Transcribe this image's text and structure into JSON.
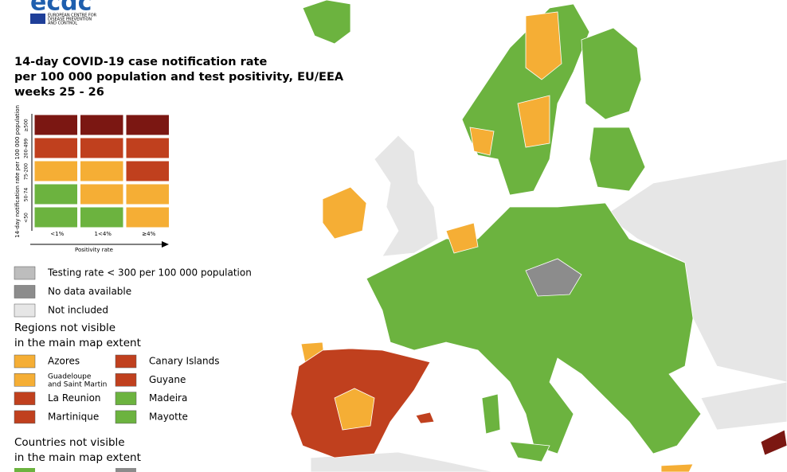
{
  "logo": {
    "name": "ecdc",
    "subtitle": [
      "EUROPEAN CENTRE FOR",
      "DISEASE PREVENTION",
      "AND CONTROL"
    ]
  },
  "title": [
    "14-day COVID-19 case notification rate",
    "per 100 000 population and test positivity, EU/EEA",
    "weeks 25 - 26"
  ],
  "matrix": {
    "y_label": "14-day notification rate per 100 000 population",
    "rows": [
      "≥500",
      "200-499",
      "75-200",
      "50-74",
      "<50"
    ],
    "columns": [
      "<1%",
      "1<4%",
      "≥4%"
    ],
    "x_label": "Positivity rate",
    "cells": [
      [
        "#7b1712",
        "#7b1712",
        "#7b1712"
      ],
      [
        "#c0401e",
        "#c0401e",
        "#c0401e"
      ],
      [
        "#f5ae35",
        "#f5ae35",
        "#c0401e"
      ],
      [
        "#6cb33f",
        "#f5ae35",
        "#f5ae35"
      ],
      [
        "#6cb33f",
        "#6cb33f",
        "#f5ae35"
      ]
    ]
  },
  "legend": [
    {
      "label": "Testing rate < 300 per 100 000 population",
      "color": "#bdbdbd"
    },
    {
      "label": "No data available",
      "color": "#8c8c8c"
    },
    {
      "label": "Not included",
      "color": "#e6e6e6"
    }
  ],
  "regions_heading": [
    "Regions not visible",
    "in the main map extent"
  ],
  "regions": [
    {
      "label": "Azores",
      "color": "#f5ae35"
    },
    {
      "label": "Canary Islands",
      "color": "#c0401e"
    },
    {
      "label": "Guadeloupe\nand Saint Martin",
      "color": "#f5ae35"
    },
    {
      "label": "Guyane",
      "color": "#c0401e"
    },
    {
      "label": "La Reunion",
      "color": "#c0401e"
    },
    {
      "label": "Madeira",
      "color": "#6cb33f"
    },
    {
      "label": "Martinique",
      "color": "#c0401e"
    },
    {
      "label": "Mayotte",
      "color": "#6cb33f"
    }
  ],
  "countries_heading": [
    "Countries not visible",
    "in the main map extent"
  ]
}
